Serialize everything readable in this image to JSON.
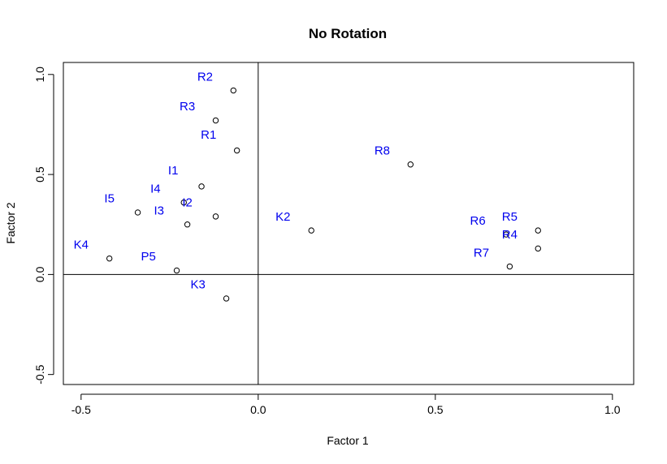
{
  "chart_data": {
    "type": "scatter",
    "title": "No Rotation",
    "xlabel": "Factor 1",
    "ylabel": "Factor 2",
    "xlim": [
      -0.55,
      1.06
    ],
    "ylim": [
      -0.55,
      1.06
    ],
    "xticks": [
      -0.5,
      0.0,
      0.5,
      1.0
    ],
    "xtick_labels": [
      "-0.5",
      "0.0",
      "0.5",
      "1.0"
    ],
    "yticks": [
      -0.5,
      0.0,
      0.5,
      1.0
    ],
    "ytick_labels": [
      "-0.5",
      "0.0",
      "0.5",
      "1.0"
    ],
    "reference_lines": {
      "x": 0,
      "y": 0
    },
    "grid": false,
    "legend": "none",
    "label_color": "#0000ee",
    "point_color": "#000000",
    "points": [
      {
        "name": "R2",
        "x": -0.07,
        "y": 0.92,
        "lx": -0.15,
        "ly": 0.99
      },
      {
        "name": "R3",
        "x": -0.12,
        "y": 0.77,
        "lx": -0.2,
        "ly": 0.84
      },
      {
        "name": "R1",
        "x": -0.06,
        "y": 0.62,
        "lx": -0.14,
        "ly": 0.7
      },
      {
        "name": "I1",
        "x": -0.16,
        "y": 0.44,
        "lx": -0.24,
        "ly": 0.52
      },
      {
        "name": "I4",
        "x": -0.21,
        "y": 0.36,
        "lx": -0.29,
        "ly": 0.43
      },
      {
        "name": "I2",
        "x": -0.2,
        "y": 0.25,
        "lx": -0.2,
        "ly": 0.36
      },
      {
        "name": "I5",
        "x": -0.34,
        "y": 0.31,
        "lx": -0.42,
        "ly": 0.38
      },
      {
        "name": "I3",
        "x": -0.12,
        "y": 0.29,
        "lx": -0.28,
        "ly": 0.32
      },
      {
        "name": "K4",
        "x": -0.42,
        "y": 0.08,
        "lx": -0.5,
        "ly": 0.15
      },
      {
        "name": "P5",
        "x": -0.23,
        "y": 0.02,
        "lx": -0.31,
        "ly": 0.09
      },
      {
        "name": "K3",
        "x": -0.09,
        "y": -0.12,
        "lx": -0.17,
        "ly": -0.05
      },
      {
        "name": "K2",
        "x": 0.15,
        "y": 0.22,
        "lx": 0.07,
        "ly": 0.29
      },
      {
        "name": "R8",
        "x": 0.43,
        "y": 0.55,
        "lx": 0.35,
        "ly": 0.62
      },
      {
        "name": "R6",
        "x": 0.7,
        "y": 0.2,
        "lx": 0.62,
        "ly": 0.27
      },
      {
        "name": "R5",
        "x": 0.79,
        "y": 0.22,
        "lx": 0.71,
        "ly": 0.29
      },
      {
        "name": "R4",
        "x": 0.79,
        "y": 0.13,
        "lx": 0.71,
        "ly": 0.2
      },
      {
        "name": "R7",
        "x": 0.71,
        "y": 0.04,
        "lx": 0.63,
        "ly": 0.11
      }
    ]
  }
}
